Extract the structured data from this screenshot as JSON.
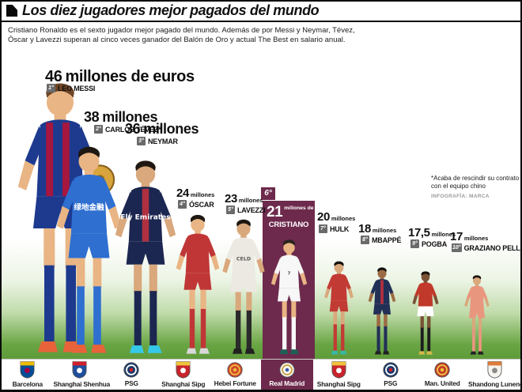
{
  "title": "Los diez jugadores mejor pagados del mundo",
  "subtitle": "Cristiano Ronaldo es el sexto jugador mejor pagado del mundo. Además de por Messi y Neymar, Tévez, Óscar y Lavezzi superan al cinco veces ganador del Balón de Oro y actual The Best en salario anual.",
  "footnote": "*Acaba de rescindir su contrato con el equipo chino",
  "credit": "INFOGRAFÍA: MARCA",
  "colors": {
    "accent_maroon": "#6d2a4c",
    "badge_gray": "#6a6a6a",
    "grass_green": "#5f9b3a",
    "title_black": "#0a0a0a",
    "gold_ball": "#d9a43c"
  },
  "players": [
    {
      "rank": "1°",
      "name": "LEO MESSI",
      "num": "46",
      "suffix": "millones de euros",
      "team": "Barcelona",
      "kit": {
        "shirt": "#1d3a8f",
        "accent": "stripes",
        "accent_color": "#a6163f",
        "shorts": "#1d3a8f",
        "socks": "#1d3a8f",
        "boots": "#e8623a",
        "hair": "#6f4526",
        "skin": "#e9b584",
        "ball": true
      }
    },
    {
      "rank": "2°",
      "name": "CARLOS TÉVEZ*",
      "num": "38",
      "suffix": "millones",
      "team": "Shanghai Shenhua",
      "kit": {
        "shirt": "#2e6fd0",
        "accent": "none",
        "shorts": "#2e6fd0",
        "socks": "#2e6fd0",
        "boots": "#e8623a",
        "hair": "#1f1812",
        "skin": "#e9b584",
        "sponsor": "绿地金融",
        "text_color": "#ffffff"
      }
    },
    {
      "rank": "3°",
      "name": "NEYMAR",
      "num": "36",
      "suffix": "millones",
      "team": "PSG",
      "kit": {
        "shirt": "#1b2750",
        "accent": "center",
        "accent_color": "#b03040",
        "shorts": "#1b2750",
        "socks": "#1b2750",
        "boots": "#35c8e8",
        "hair": "#1f1812",
        "skin": "#d9a87c",
        "sponsor": "Fly Emirates",
        "text_color": "#ffffff"
      }
    },
    {
      "rank": "4°",
      "name": "ÓSCAR",
      "num": "24",
      "suffix": "millones",
      "team": "Shanghai Sipg",
      "kit": {
        "shirt": "#c03636",
        "accent": "none",
        "shorts": "#c03636",
        "socks": "#c03636",
        "boots": "#d8d8d8",
        "hair": "#1f1812",
        "skin": "#e9b584"
      }
    },
    {
      "rank": "5°",
      "name": "LAVEZZI",
      "num": "23",
      "suffix": "millones",
      "team": "Hebei Fortune",
      "kit": {
        "shirt": "#ece9e2",
        "accent": "none",
        "shorts": "#ece9e2",
        "socks": "#2a2a2a",
        "boots": "#222222",
        "hair": "#1f1812",
        "skin": "#d9a87c",
        "sponsor": "CELD",
        "text_color": "#555555"
      }
    },
    {
      "rank": "6°",
      "name": "CRISTIANO",
      "num": "21",
      "suffix": "millones de euros",
      "team": "Real Madrid",
      "highlighted": true,
      "kit": {
        "shirt": "#f7f7f7",
        "accent": "none",
        "shorts": "#f7f7f7",
        "socks": "#f7f7f7",
        "boots": "#1e5f56",
        "hair": "#2a241e",
        "skin": "#e9b584",
        "sponsor": "7",
        "text_color": "#444444"
      }
    },
    {
      "rank": "7°",
      "name": "HULK",
      "num": "20",
      "suffix": "millones",
      "team": "Shanghai Sipg",
      "kit": {
        "shirt": "#c23a34",
        "accent": "none",
        "shorts": "#c23a34",
        "socks": "#c23a34",
        "boots": "#35b8a8",
        "hair": "#14100c",
        "skin": "#d9a87c"
      }
    },
    {
      "rank": "8°",
      "name": "MBAPPÉ",
      "num": "18",
      "suffix": "millones",
      "team": "PSG",
      "kit": {
        "shirt": "#222f57",
        "accent": "center",
        "accent_color": "#b03040",
        "shorts": "#222f57",
        "socks": "#222f57",
        "boots": "#222222",
        "hair": "#14100c",
        "skin": "#9c6b44"
      }
    },
    {
      "rank": "9°",
      "name": "POGBA",
      "num": "17,5",
      "suffix": "millones",
      "team": "Man. United",
      "kit": {
        "shirt": "#c0392b",
        "accent": "none",
        "shorts": "#ffffff",
        "socks": "#1d1d1d",
        "boots": "#d4b84a",
        "hair": "#14100c",
        "skin": "#7a5236"
      }
    },
    {
      "rank": "10°",
      "name": "GRAZIANO PELLÉ",
      "num": "17",
      "suffix": "millones",
      "team": "Shandong Luneng",
      "kit": {
        "shirt": "#e9967f",
        "accent": "none",
        "shorts": "#e9967f",
        "socks": "#e9967f",
        "boots": "#222222",
        "hair": "#1f1812",
        "skin": "#d9a87c"
      }
    }
  ],
  "teams": [
    {
      "name": "Barcelona",
      "icon": "barcelona-crest-icon",
      "shape": "shield",
      "c1": "#004d98",
      "c2": "#a50044",
      "c3": "#edbb00"
    },
    {
      "name": "Shanghai Shenhua",
      "icon": "shanghai-shenhua-crest-icon",
      "shape": "shield",
      "c1": "#1f4e9c",
      "c2": "#ffffff",
      "c3": "#d21f2b"
    },
    {
      "name": "PSG",
      "icon": "psg-crest-icon",
      "shape": "circle",
      "c1": "#1a3a6b",
      "c2": "#ffffff",
      "c3": "#d21f2b"
    },
    {
      "name": "Shanghai Sipg",
      "icon": "shanghai-sipg-crest-icon",
      "shape": "shield",
      "c1": "#c8242c",
      "c2": "#ffffff",
      "c3": "#f0c33c"
    },
    {
      "name": "Hebei Fortune",
      "icon": "hebei-fortune-crest-icon",
      "shape": "circle",
      "c1": "#d2442a",
      "c2": "#f0b93c",
      "c3": "#f0b93c"
    },
    {
      "name": "Real Madrid",
      "icon": "real-madrid-crest-icon",
      "shape": "circle",
      "c1": "#f8f8f8",
      "c2": "#c9a23c",
      "c3": "#3b5aa0",
      "highlighted": true
    },
    {
      "name": "Shanghai Sipg",
      "icon": "shanghai-sipg-crest-icon",
      "shape": "shield",
      "c1": "#c8242c",
      "c2": "#ffffff",
      "c3": "#f0c33c"
    },
    {
      "name": "PSG",
      "icon": "psg-crest-icon",
      "shape": "circle",
      "c1": "#1a3a6b",
      "c2": "#ffffff",
      "c3": "#d21f2b"
    },
    {
      "name": "Man. United",
      "icon": "man-united-crest-icon",
      "shape": "circle",
      "c1": "#c0392b",
      "c2": "#f0c33c",
      "c3": "#f0c33c"
    },
    {
      "name": "Shandong Luneng",
      "icon": "shandong-luneng-crest-icon",
      "shape": "shield",
      "c1": "#f6f4ee",
      "c2": "#8a8a8a",
      "c3": "#e07b39"
    }
  ],
  "chart_data": {
    "type": "bar",
    "subtype": "pictogram",
    "title": "Los diez jugadores mejor pagados del mundo",
    "unit": "millones de euros (salario anual)",
    "categories": [
      "Leo Messi",
      "Carlos Tévez",
      "Neymar",
      "Óscar",
      "Lavezzi",
      "Cristiano",
      "Hulk",
      "Mbappé",
      "Pogba",
      "Graziano Pellé"
    ],
    "values": [
      46,
      38,
      36,
      24,
      23,
      21,
      20,
      18,
      17.5,
      17
    ],
    "teams": [
      "Barcelona",
      "Shanghai Shenhua",
      "PSG",
      "Shanghai Sipg",
      "Hebei Fortune",
      "Real Madrid",
      "Shanghai Sipg",
      "PSG",
      "Man. United",
      "Shandong Luneng"
    ],
    "highlighted_index": 5,
    "annotation": "*Acaba de rescindir su contrato con el equipo chino"
  }
}
